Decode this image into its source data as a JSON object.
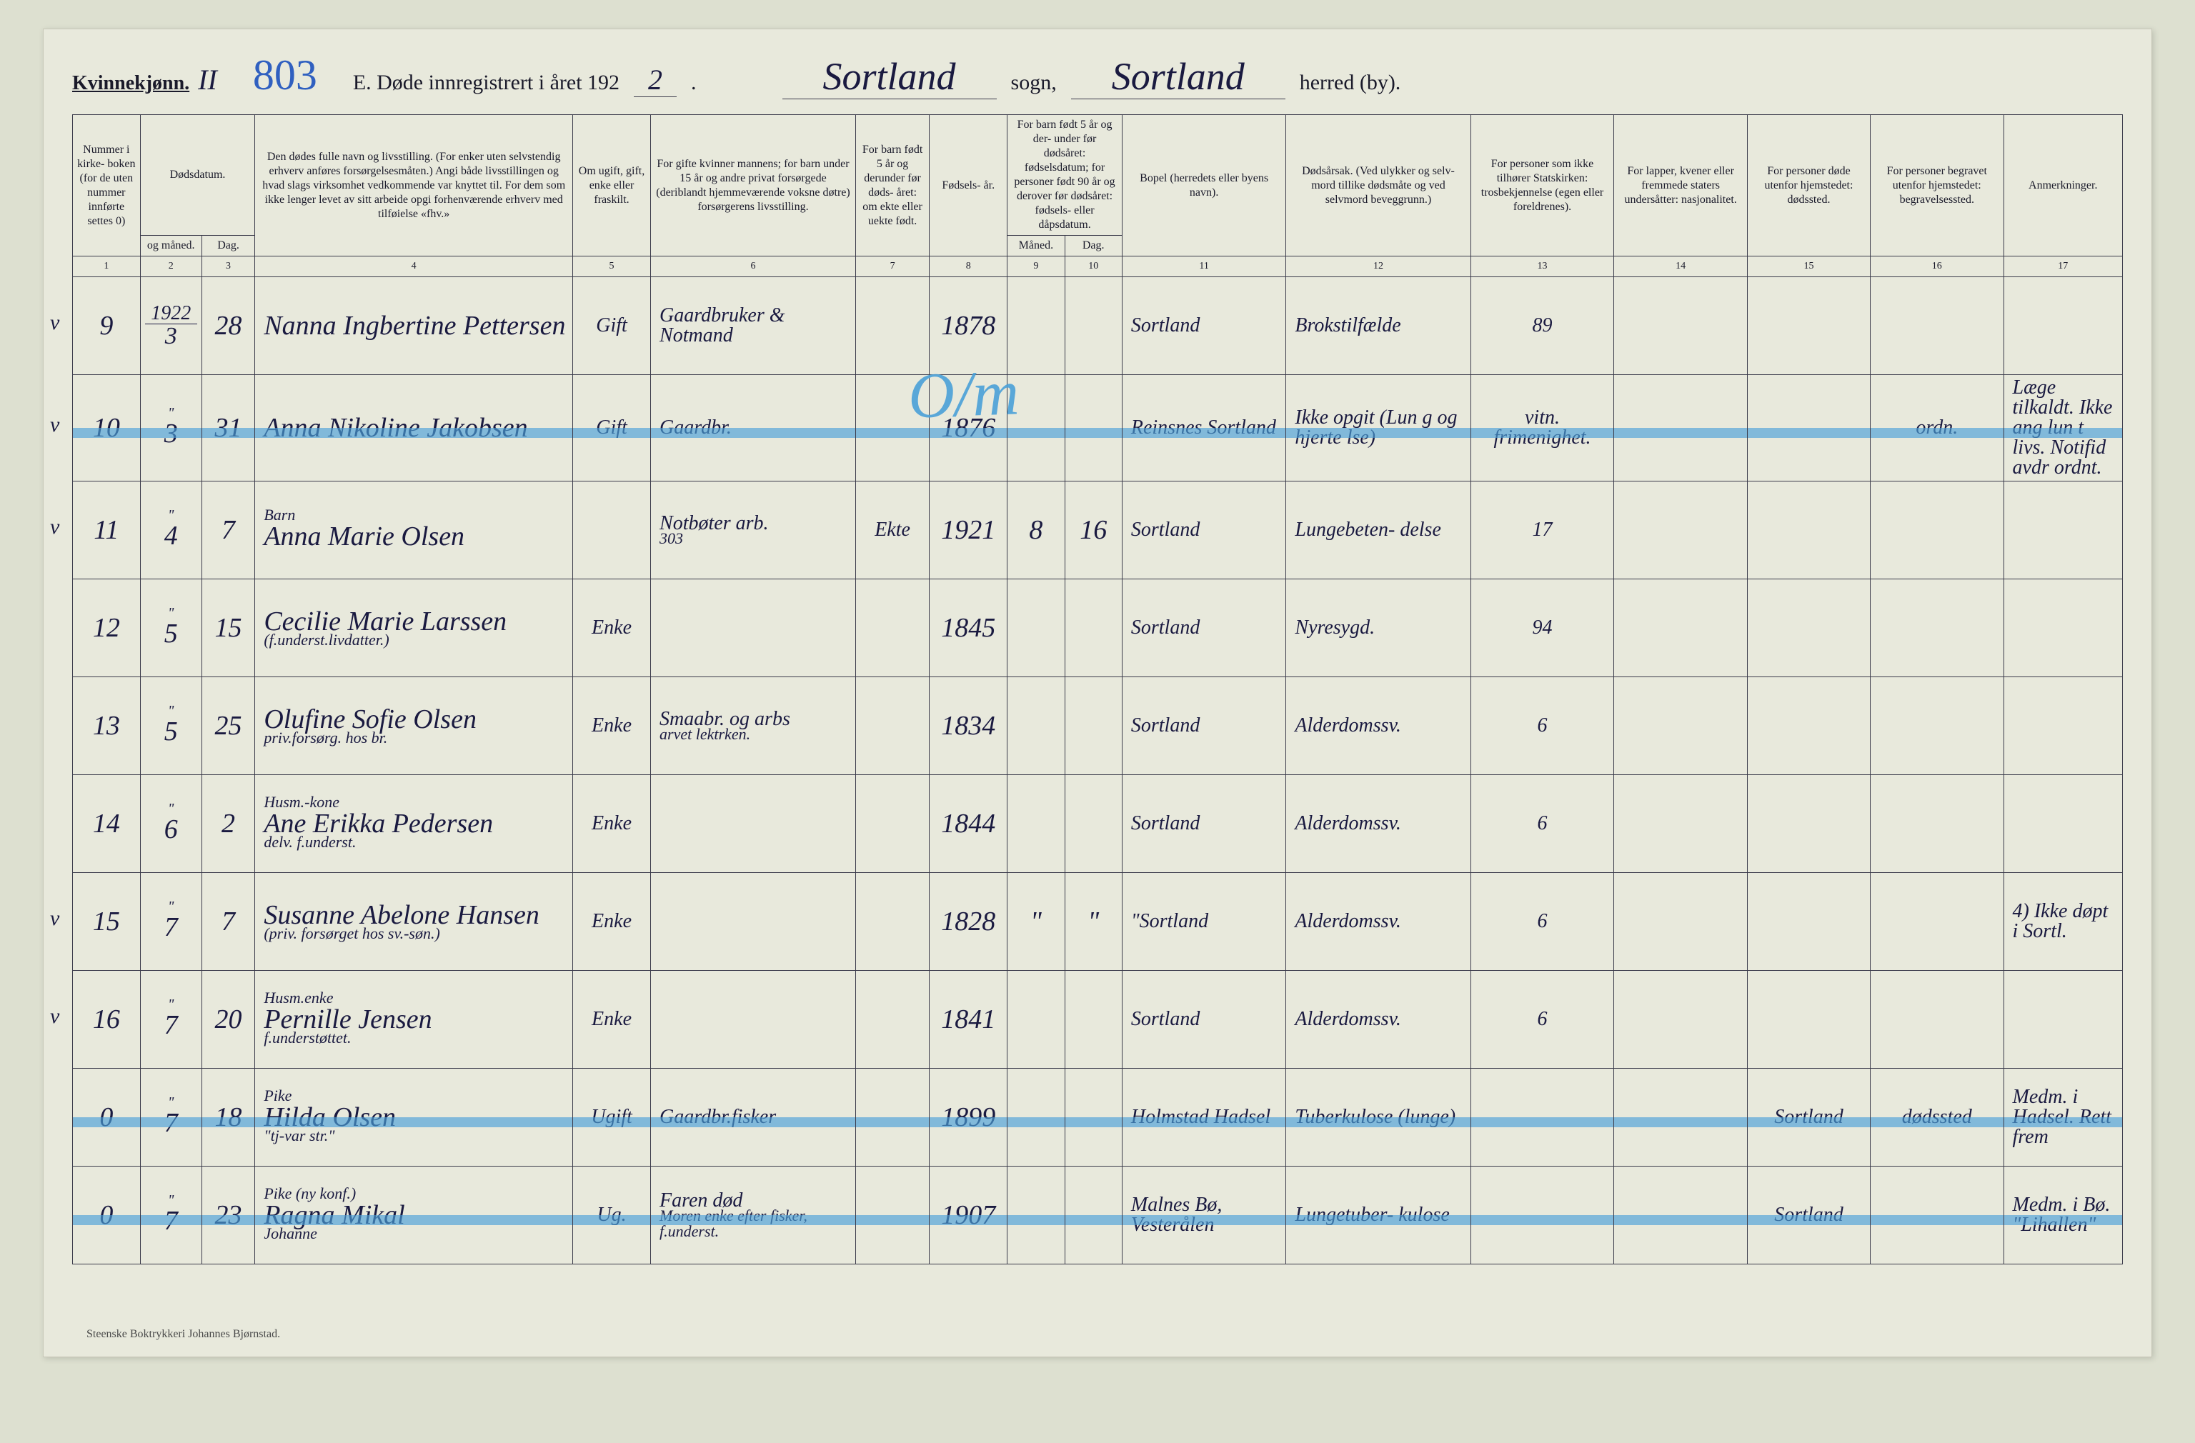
{
  "page": {
    "background_color": "#dde0d0",
    "paper_color": "#e8e9dc",
    "ink_color": "#1a1a2a",
    "script_color": "#1a1a40",
    "bluepen_color": "#4aa0d8",
    "pagenum_color": "#3060c0",
    "border_color": "#3a3a4a"
  },
  "header": {
    "gender_label": "Kvinnekjønn.",
    "roman": "II",
    "page_number": "803",
    "title_prefix": "E.  Døde innregistrert i året 192",
    "year_suffix": "2",
    "title_period": ".",
    "sogn_value": "Sortland",
    "sogn_label": "sogn,",
    "herred_value": "Sortland",
    "herred_label": "herred (by)."
  },
  "columns": {
    "c1": "Nummer i kirke- boken (for de uten nummer innførte settes 0)",
    "c2a": "Dødsdatum.",
    "c2_sub_left": "og måned.",
    "c2_sub_right": "Dag.",
    "c4": "Den dødes fulle navn og livsstilling. (For enker uten selvstendig erhverv anføres forsørgelsesmåten.) Angi både livsstillingen og hvad slags virksomhet vedkommende var knyttet til. For dem som ikke lenger levet av sitt arbeide opgi forhenværende erhverv med tilføielse «fhv.»",
    "c5": "Om ugift, gift, enke eller fraskilt.",
    "c6": "For gifte kvinner mannens; for barn under 15 år og andre privat forsørgede (deriblandt hjemmeværende voksne døtre) forsørgerens livsstilling.",
    "c7": "For barn født 5 år og derunder før døds- året: om ekte eller uekte født.",
    "c8": "Fødsels- år.",
    "c9_10": "For barn født 5 år og der- under før dødsåret: fødselsdatum; for personer født 90 år og derover før dødsåret: fødsels- eller dåpsdatum.",
    "c9": "Måned.",
    "c10": "Dag.",
    "c11": "Bopel (herredets eller byens navn).",
    "c12": "Dødsårsak. (Ved ulykker og selv- mord tillike dødsmåte og ved selvmord beveggrunn.)",
    "c13": "For personer som ikke tilhører Statskirken: trosbekjennelse (egen eller foreldrenes).",
    "c14": "For lapper, kvener eller fremmede staters undersåtter: nasjonalitet.",
    "c15": "For personer døde utenfor hjemstedet: dødssted.",
    "c16": "For personer begravet utenfor hjemstedet: begravelsessted.",
    "c17": "Anmerkninger."
  },
  "colnums": [
    "1",
    "2",
    "3",
    "4",
    "5",
    "6",
    "7",
    "8",
    "9",
    "10",
    "11",
    "12",
    "13",
    "14",
    "15",
    "16",
    "17"
  ],
  "col_widths_pct": [
    3.3,
    3.0,
    2.6,
    15.5,
    3.8,
    10.0,
    3.6,
    3.8,
    2.8,
    2.8,
    8.0,
    9.0,
    7.0,
    6.5,
    6.0,
    6.5,
    5.8
  ],
  "rows": [
    {
      "check": "v",
      "num": "9",
      "year_frac_top": "1922",
      "month": "3",
      "day": "28",
      "name": "Nanna Ingbertine Pettersen",
      "status": "Gift",
      "provider": "Gaardbruker & Notmand",
      "ekte": "",
      "birth_year": "1878",
      "b_m": "",
      "b_d": "",
      "residence": "Sortland",
      "cause": "Brokstilfælde",
      "c13": "89",
      "c14": "",
      "c15": "",
      "c16": "",
      "c17": ""
    },
    {
      "crossed": true,
      "check": "v",
      "num": "10",
      "month": "3",
      "day": "31",
      "name": "Anna Nikoline Jakobsen",
      "status": "Gift",
      "provider": "Gaardbr.",
      "ekte": "",
      "birth_year": "1876",
      "b_m": "",
      "b_d": "",
      "residence": "Reinsnes Sortland",
      "cause": "Ikke opgit (Lun g og hjerte lse)",
      "c13": "vitn. frimenighet.",
      "c14": "",
      "c15": "",
      "c16": "ordn.",
      "c17": "Læge tilkaldt. Ikke ang lun t livs. Notifid avdr ordnt."
    },
    {
      "check": "v",
      "num": "11",
      "month": "4",
      "day": "7",
      "name_top": "Barn",
      "name": "Anna Marie Olsen",
      "status": "",
      "provider": "Notbøter arb.",
      "provider_sub": "303",
      "ekte": "Ekte",
      "birth_year": "1921",
      "b_m": "8",
      "b_d": "16",
      "residence": "Sortland",
      "cause": "Lungebeten- delse",
      "c13": "17",
      "c14": "",
      "c15": "",
      "c16": "",
      "c17": ""
    },
    {
      "check": "",
      "num": "12",
      "month": "5",
      "day": "15",
      "name": "Cecilie Marie Larssen",
      "name_sub": "(f.underst.livdatter.)",
      "status": "Enke",
      "provider": "",
      "ekte": "",
      "birth_year": "1845",
      "b_m": "",
      "b_d": "",
      "residence": "Sortland",
      "cause": "Nyresygd.",
      "c13": "94",
      "c14": "",
      "c15": "",
      "c16": "",
      "c17": ""
    },
    {
      "check": "",
      "num": "13",
      "month": "5",
      "day": "25",
      "name": "Olufine Sofie Olsen",
      "name_sub": "priv.forsørg. hos br.",
      "status": "Enke",
      "provider": "Smaabr. og arbs",
      "provider_sub": "arvet lektrken.",
      "ekte": "",
      "birth_year": "1834",
      "b_m": "",
      "b_d": "",
      "residence": "Sortland",
      "cause": "Alderdomssv.",
      "c13": "6",
      "c14": "",
      "c15": "",
      "c16": "",
      "c17": ""
    },
    {
      "check": "",
      "num": "14",
      "month": "6",
      "day": "2",
      "name_top": "Husm.-kone",
      "name": "Ane Erikka Pedersen",
      "name_sub": "delv. f.underst.",
      "status": "Enke",
      "provider": "",
      "ekte": "",
      "birth_year": "1844",
      "b_m": "",
      "b_d": "",
      "residence": "Sortland",
      "cause": "Alderdomssv.",
      "c13": "6",
      "c14": "",
      "c15": "",
      "c16": "",
      "c17": ""
    },
    {
      "check": "v",
      "num": "15",
      "month": "7",
      "day": "7",
      "name": "Susanne Abelone Hansen",
      "name_sub": "(priv. forsørget hos sv.-søn.)",
      "status": "Enke",
      "provider": "",
      "ekte": "",
      "birth_year": "1828",
      "b_m": "\"",
      "b_d": "\"",
      "residence": "\"Sortland",
      "cause": "Alderdomssv.",
      "c13": "6",
      "c14": "",
      "c15": "",
      "c16": "",
      "c17": "4) Ikke døpt i Sortl."
    },
    {
      "check": "v",
      "num": "16",
      "month": "7",
      "day": "20",
      "name_top": "Husm.enke",
      "name": "Pernille Jensen",
      "name_sub": "f.understøttet.",
      "status": "Enke",
      "provider": "",
      "ekte": "",
      "birth_year": "1841",
      "b_m": "",
      "b_d": "",
      "residence": "Sortland",
      "cause": "Alderdomssv.",
      "c13": "6",
      "c14": "",
      "c15": "",
      "c16": "",
      "c17": ""
    },
    {
      "crossed": true,
      "check": "",
      "num": "0",
      "month": "7",
      "day": "18",
      "name_top": "Pike",
      "name": "Hilda Olsen",
      "name_sub": "\"tj-var str.\"",
      "status": "Ugift",
      "provider": "Gaardbr.fisker",
      "ekte": "",
      "birth_year": "1899",
      "b_m": "",
      "b_d": "",
      "residence": "Holmstad Hadsel",
      "cause": "Tuberkulose (lunge)",
      "c13": "",
      "c14": "",
      "c15": "Sortland",
      "c16": "dødssted",
      "c17": "Medm. i Hadsel. Rett frem"
    },
    {
      "crossed": true,
      "check": "",
      "num": "0",
      "month": "7",
      "day": "23",
      "name_top": "Pike (ny konf.)",
      "name": "Ragna Mikal",
      "name_sub": "Johanne",
      "status": "Ug.",
      "provider": "Faren død",
      "provider_sub": "Moren enke efter fisker, f.underst.",
      "ekte": "",
      "birth_year": "1907",
      "b_m": "",
      "b_d": "",
      "residence": "Malnes Bø, Vesterålen",
      "cause": "Lungetuber- kulose",
      "c13": "",
      "c14": "",
      "c15": "Sortland",
      "c16": "",
      "c17": "Medm. i Bø. \"Lihallen\""
    }
  ],
  "overlay": {
    "big_mark": "O/m",
    "right_mark": "ordn."
  },
  "footer": {
    "printer": "Steenske Boktrykkeri Johannes Bjørnstad."
  }
}
